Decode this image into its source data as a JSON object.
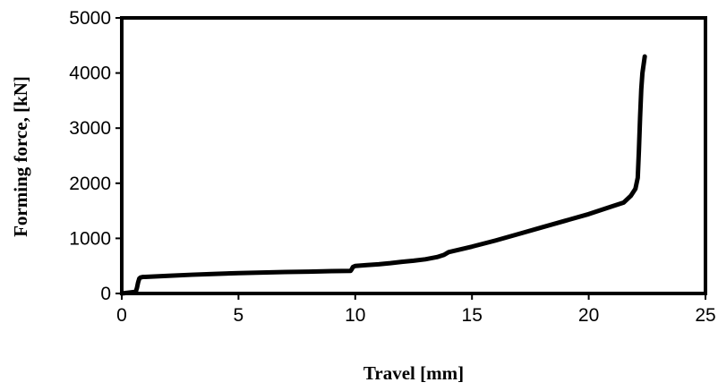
{
  "chart_data": {
    "type": "line",
    "title": "",
    "xlabel": "Travel [mm]",
    "ylabel": "Forming force, [kN]",
    "xlim": [
      0,
      25
    ],
    "ylim": [
      0,
      5000
    ],
    "x_ticks": [
      0,
      5,
      10,
      15,
      20,
      25
    ],
    "y_ticks": [
      0,
      1000,
      2000,
      3000,
      4000,
      5000
    ],
    "grid": false,
    "legend": "none",
    "line_color": "#000000",
    "series": [
      {
        "x": [
          0.0,
          0.6,
          0.65,
          0.7,
          0.75,
          0.8,
          0.9,
          1.0,
          2.0,
          3.0,
          4.0,
          5.0,
          6.0,
          7.0,
          8.0,
          9.0,
          9.8,
          9.85,
          9.9,
          10.0,
          10.5,
          11.0,
          11.5,
          12.0,
          12.5,
          13.0,
          13.5,
          13.8,
          14.0,
          15.0,
          16.0,
          17.0,
          18.0,
          19.0,
          20.0,
          21.0,
          21.5,
          21.8,
          22.0,
          22.1,
          22.15,
          22.2,
          22.25,
          22.3,
          22.4
        ],
        "y": [
          0,
          30,
          100,
          200,
          270,
          290,
          300,
          300,
          320,
          340,
          355,
          370,
          380,
          390,
          395,
          405,
          410,
          440,
          480,
          500,
          515,
          530,
          550,
          575,
          595,
          620,
          660,
          700,
          750,
          850,
          960,
          1080,
          1200,
          1320,
          1440,
          1580,
          1650,
          1770,
          1900,
          2100,
          2600,
          3200,
          3700,
          4000,
          4300
        ]
      }
    ]
  }
}
